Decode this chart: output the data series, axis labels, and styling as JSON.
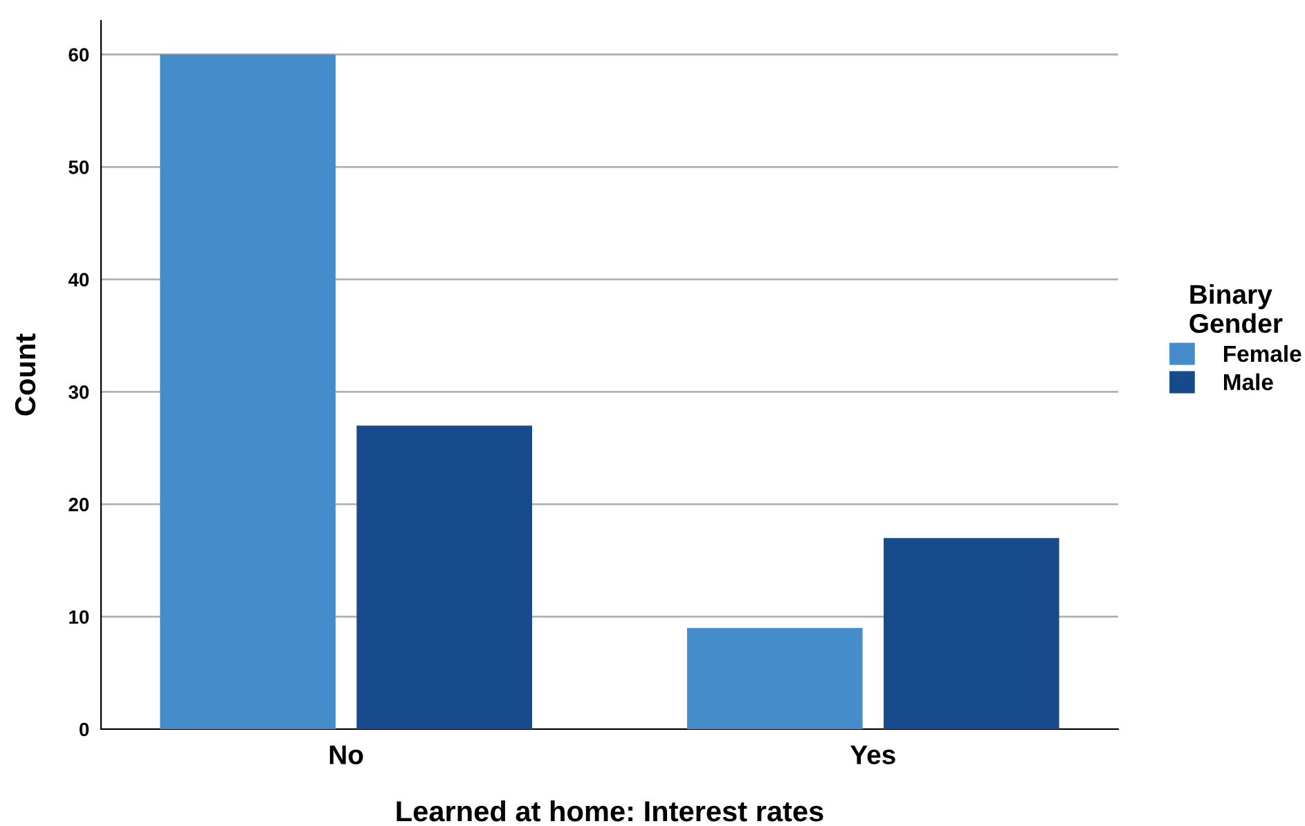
{
  "chart_data": {
    "type": "bar",
    "xlabel": "Learned at home: Interest rates",
    "ylabel": "Count",
    "categories": [
      "No",
      "Yes"
    ],
    "series": [
      {
        "name": "Female",
        "color": "#458ccb",
        "values": [
          60,
          9
        ]
      },
      {
        "name": "Male",
        "color": "#174a8b",
        "values": [
          27,
          17
        ]
      }
    ],
    "ylim": [
      0,
      63
    ],
    "yticks": [
      0,
      10,
      20,
      30,
      40,
      50,
      60
    ],
    "grid": "y",
    "legend": "right",
    "legend_title": "Binary\nGender"
  }
}
